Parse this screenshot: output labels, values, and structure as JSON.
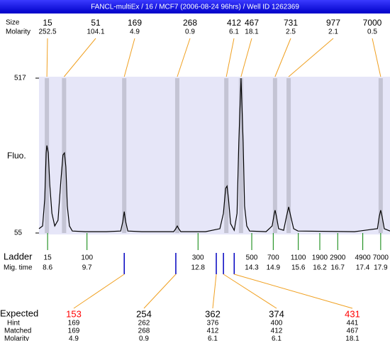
{
  "title": "FANCL-multiEx / 16 / MCF7 (2006-08-24 96hrs) / Well ID 1262369",
  "chart_data": {
    "type": "line",
    "ylabel": "Fluo.",
    "ylim": [
      55,
      517
    ],
    "yticks": [
      55,
      517
    ],
    "xlim": [
      8.36,
      18.16
    ],
    "color": "#000000",
    "x": [
      8.36,
      8.46,
      8.52,
      8.56,
      8.58,
      8.62,
      8.66,
      8.72,
      8.8,
      8.89,
      8.97,
      9.03,
      9.07,
      9.11,
      9.15,
      9.21,
      9.29,
      9.65,
      10.24,
      10.64,
      10.7,
      10.74,
      10.78,
      10.84,
      11.23,
      12.12,
      12.18,
      12.22,
      12.26,
      12.32,
      13.01,
      13.41,
      13.51,
      13.57,
      13.61,
      13.65,
      13.71,
      13.81,
      13.89,
      13.94,
      14.0,
      14.06,
      14.1,
      14.16,
      14.24,
      14.7,
      14.87,
      14.93,
      14.95,
      14.99,
      15.05,
      15.19,
      15.27,
      15.33,
      15.39,
      15.47,
      15.59,
      17.17,
      17.81,
      17.86,
      17.9,
      17.94,
      18.0,
      18.16
    ],
    "values": [
      68,
      76,
      157,
      294,
      316,
      294,
      199,
      114,
      76,
      93,
      210,
      288,
      294,
      252,
      136,
      76,
      61,
      59,
      59,
      61,
      89,
      119,
      89,
      61,
      59,
      59,
      68,
      76,
      68,
      59,
      59,
      68,
      114,
      188,
      195,
      157,
      83,
      63,
      114,
      326,
      517,
      326,
      136,
      76,
      61,
      59,
      76,
      114,
      123,
      104,
      68,
      63,
      104,
      133,
      104,
      68,
      61,
      59,
      68,
      104,
      123,
      104,
      68,
      61
    ],
    "peaks": {
      "label": "Size",
      "molarity_label": "Molarity",
      "times": [
        8.58,
        9.06,
        10.74,
        12.22,
        13.59,
        14.0,
        14.95,
        15.33,
        17.9
      ],
      "sizes": [
        15,
        51,
        169,
        268,
        412,
        467,
        731,
        977,
        7000
      ],
      "molarity": [
        252.5,
        104.1,
        4.9,
        0.9,
        6.1,
        18.1,
        2.5,
        2.1,
        0.5
      ]
    },
    "ladder": {
      "label": "Ladder",
      "time_label": "Mig. time",
      "sizes": [
        15,
        100,
        300,
        500,
        700,
        1100,
        1900,
        2900,
        4900,
        7000
      ],
      "times": [
        8.6,
        9.7,
        12.8,
        14.3,
        14.9,
        15.6,
        16.2,
        16.7,
        17.4,
        17.9
      ]
    },
    "expected": {
      "label": "Expected",
      "hint_label": "Hint",
      "matched_label": "Matched",
      "molarity_label": "Molarity",
      "times": [
        10.74,
        12.18,
        13.31,
        13.51,
        13.81
      ],
      "values": [
        153,
        254,
        362,
        374,
        431
      ],
      "colors": [
        "#ff0000",
        "#000000",
        "#000000",
        "#000000",
        "#ff0000"
      ],
      "hint": [
        169,
        262,
        376,
        400,
        441
      ],
      "matched": [
        169,
        268,
        412,
        412,
        467
      ],
      "molarity": [
        4.9,
        0.9,
        6.1,
        6.1,
        18.1
      ],
      "row_colors": [
        "#90ee90",
        "#90ee90",
        "#add8e6",
        "#add8e6",
        "#add8e6"
      ]
    }
  }
}
